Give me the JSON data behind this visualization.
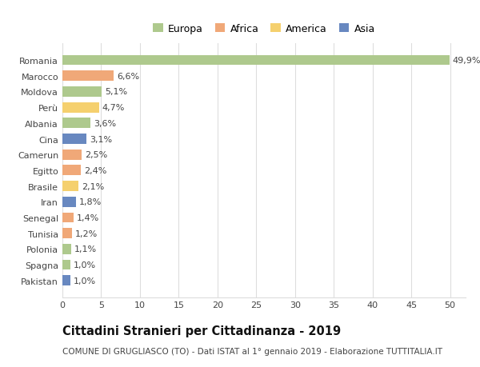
{
  "countries": [
    "Romania",
    "Marocco",
    "Moldova",
    "Perù",
    "Albania",
    "Cina",
    "Camerun",
    "Egitto",
    "Brasile",
    "Iran",
    "Senegal",
    "Tunisia",
    "Polonia",
    "Spagna",
    "Pakistan"
  ],
  "values": [
    49.9,
    6.6,
    5.1,
    4.7,
    3.6,
    3.1,
    2.5,
    2.4,
    2.1,
    1.8,
    1.4,
    1.2,
    1.1,
    1.0,
    1.0
  ],
  "labels": [
    "49,9%",
    "6,6%",
    "5,1%",
    "4,7%",
    "3,6%",
    "3,1%",
    "2,5%",
    "2,4%",
    "2,1%",
    "1,8%",
    "1,4%",
    "1,2%",
    "1,1%",
    "1,0%",
    "1,0%"
  ],
  "continents": [
    "Europa",
    "Africa",
    "Europa",
    "America",
    "Europa",
    "Asia",
    "Africa",
    "Africa",
    "America",
    "Asia",
    "Africa",
    "Africa",
    "Europa",
    "Europa",
    "Asia"
  ],
  "continent_colors": {
    "Europa": "#aec98d",
    "Africa": "#f0a878",
    "America": "#f5d06e",
    "Asia": "#6888c0"
  },
  "legend_items": [
    "Europa",
    "Africa",
    "America",
    "Asia"
  ],
  "legend_colors": [
    "#aec98d",
    "#f0a878",
    "#f5d06e",
    "#6888c0"
  ],
  "xlim": [
    0,
    52
  ],
  "xticks": [
    0,
    5,
    10,
    15,
    20,
    25,
    30,
    35,
    40,
    45,
    50
  ],
  "title": "Cittadini Stranieri per Cittadinanza - 2019",
  "subtitle": "COMUNE DI GRUGLIASCO (TO) - Dati ISTAT al 1° gennaio 2019 - Elaborazione TUTTITALIA.IT",
  "background_color": "#ffffff",
  "grid_color": "#dddddd",
  "bar_height": 0.65,
  "label_fontsize": 8,
  "tick_fontsize": 8,
  "title_fontsize": 10.5,
  "subtitle_fontsize": 7.5
}
